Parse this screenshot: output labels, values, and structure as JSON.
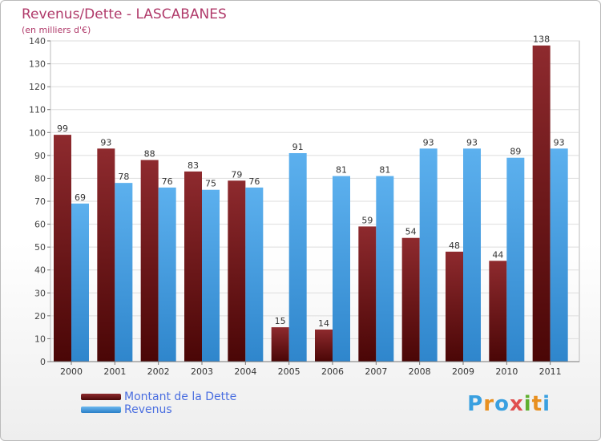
{
  "chart_data": {
    "type": "bar",
    "title": "Revenus/Dette - LASCABANES",
    "subtitle": "(en milliers d'€)",
    "categories": [
      "2000",
      "2001",
      "2002",
      "2003",
      "2004",
      "2005",
      "2006",
      "2007",
      "2008",
      "2009",
      "2010",
      "2011"
    ],
    "series": [
      {
        "name": "Montant de la Dette",
        "values": [
          99,
          93,
          88,
          83,
          79,
          15,
          14,
          59,
          54,
          48,
          44,
          138
        ],
        "color": "#7a1f22"
      },
      {
        "name": "Revenus",
        "values": [
          69,
          78,
          76,
          75,
          76,
          91,
          81,
          81,
          93,
          93,
          89,
          93
        ],
        "color": "#4aa3e8"
      }
    ],
    "ylim": [
      0,
      140
    ],
    "yticks": [
      0,
      10,
      20,
      30,
      40,
      50,
      60,
      70,
      80,
      90,
      100,
      110,
      120,
      130,
      140
    ],
    "grid": true,
    "legend": "bottom-left"
  },
  "logo": {
    "text": "Proxiti"
  },
  "colors": {
    "title": "#b03a6a",
    "legend_text": "#4a6ee0"
  }
}
